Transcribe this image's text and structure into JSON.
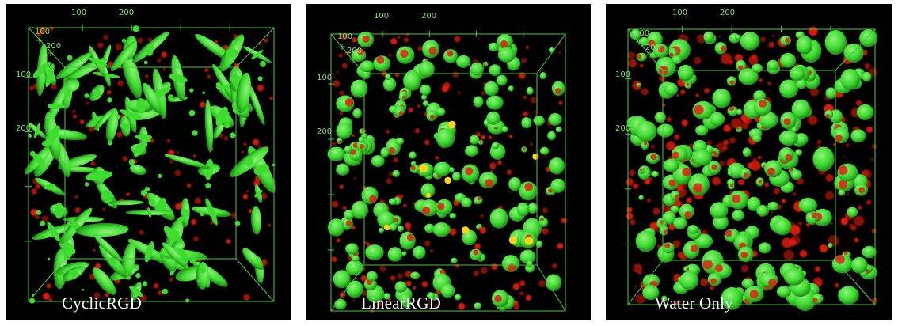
{
  "panels": [
    {
      "label": "CyclicRGD",
      "axis_labels": {
        "x_100": "100",
        "x_200": "200",
        "d_100": "100",
        "d_200": "200",
        "y_100": "100",
        "y_200": "200"
      },
      "blob_style": "elongated",
      "red_density": 0.2,
      "colors": {
        "green": "#3ddc2f",
        "red": "#e01e10",
        "yellow": "#ffd21a"
      }
    },
    {
      "label": "LinearRGD",
      "axis_labels": {
        "x_100": "100",
        "x_200": "200",
        "d_100": "100",
        "d_200": "200",
        "y_100": "100",
        "y_200": "200"
      },
      "blob_style": "round",
      "red_density": 0.35,
      "colors": {
        "green": "#3ddc2f",
        "red": "#e01e10",
        "yellow": "#ffd21a"
      }
    },
    {
      "label": "Water Only",
      "axis_labels": {
        "x_100": "100",
        "x_200": "200",
        "d_100": "100",
        "d_200": "200",
        "y_100": "100",
        "y_200": "200"
      },
      "blob_style": "round-dense",
      "red_density": 0.6,
      "colors": {
        "green": "#3ddc2f",
        "red": "#e01e10",
        "yellow": "#ffd21a"
      }
    }
  ]
}
